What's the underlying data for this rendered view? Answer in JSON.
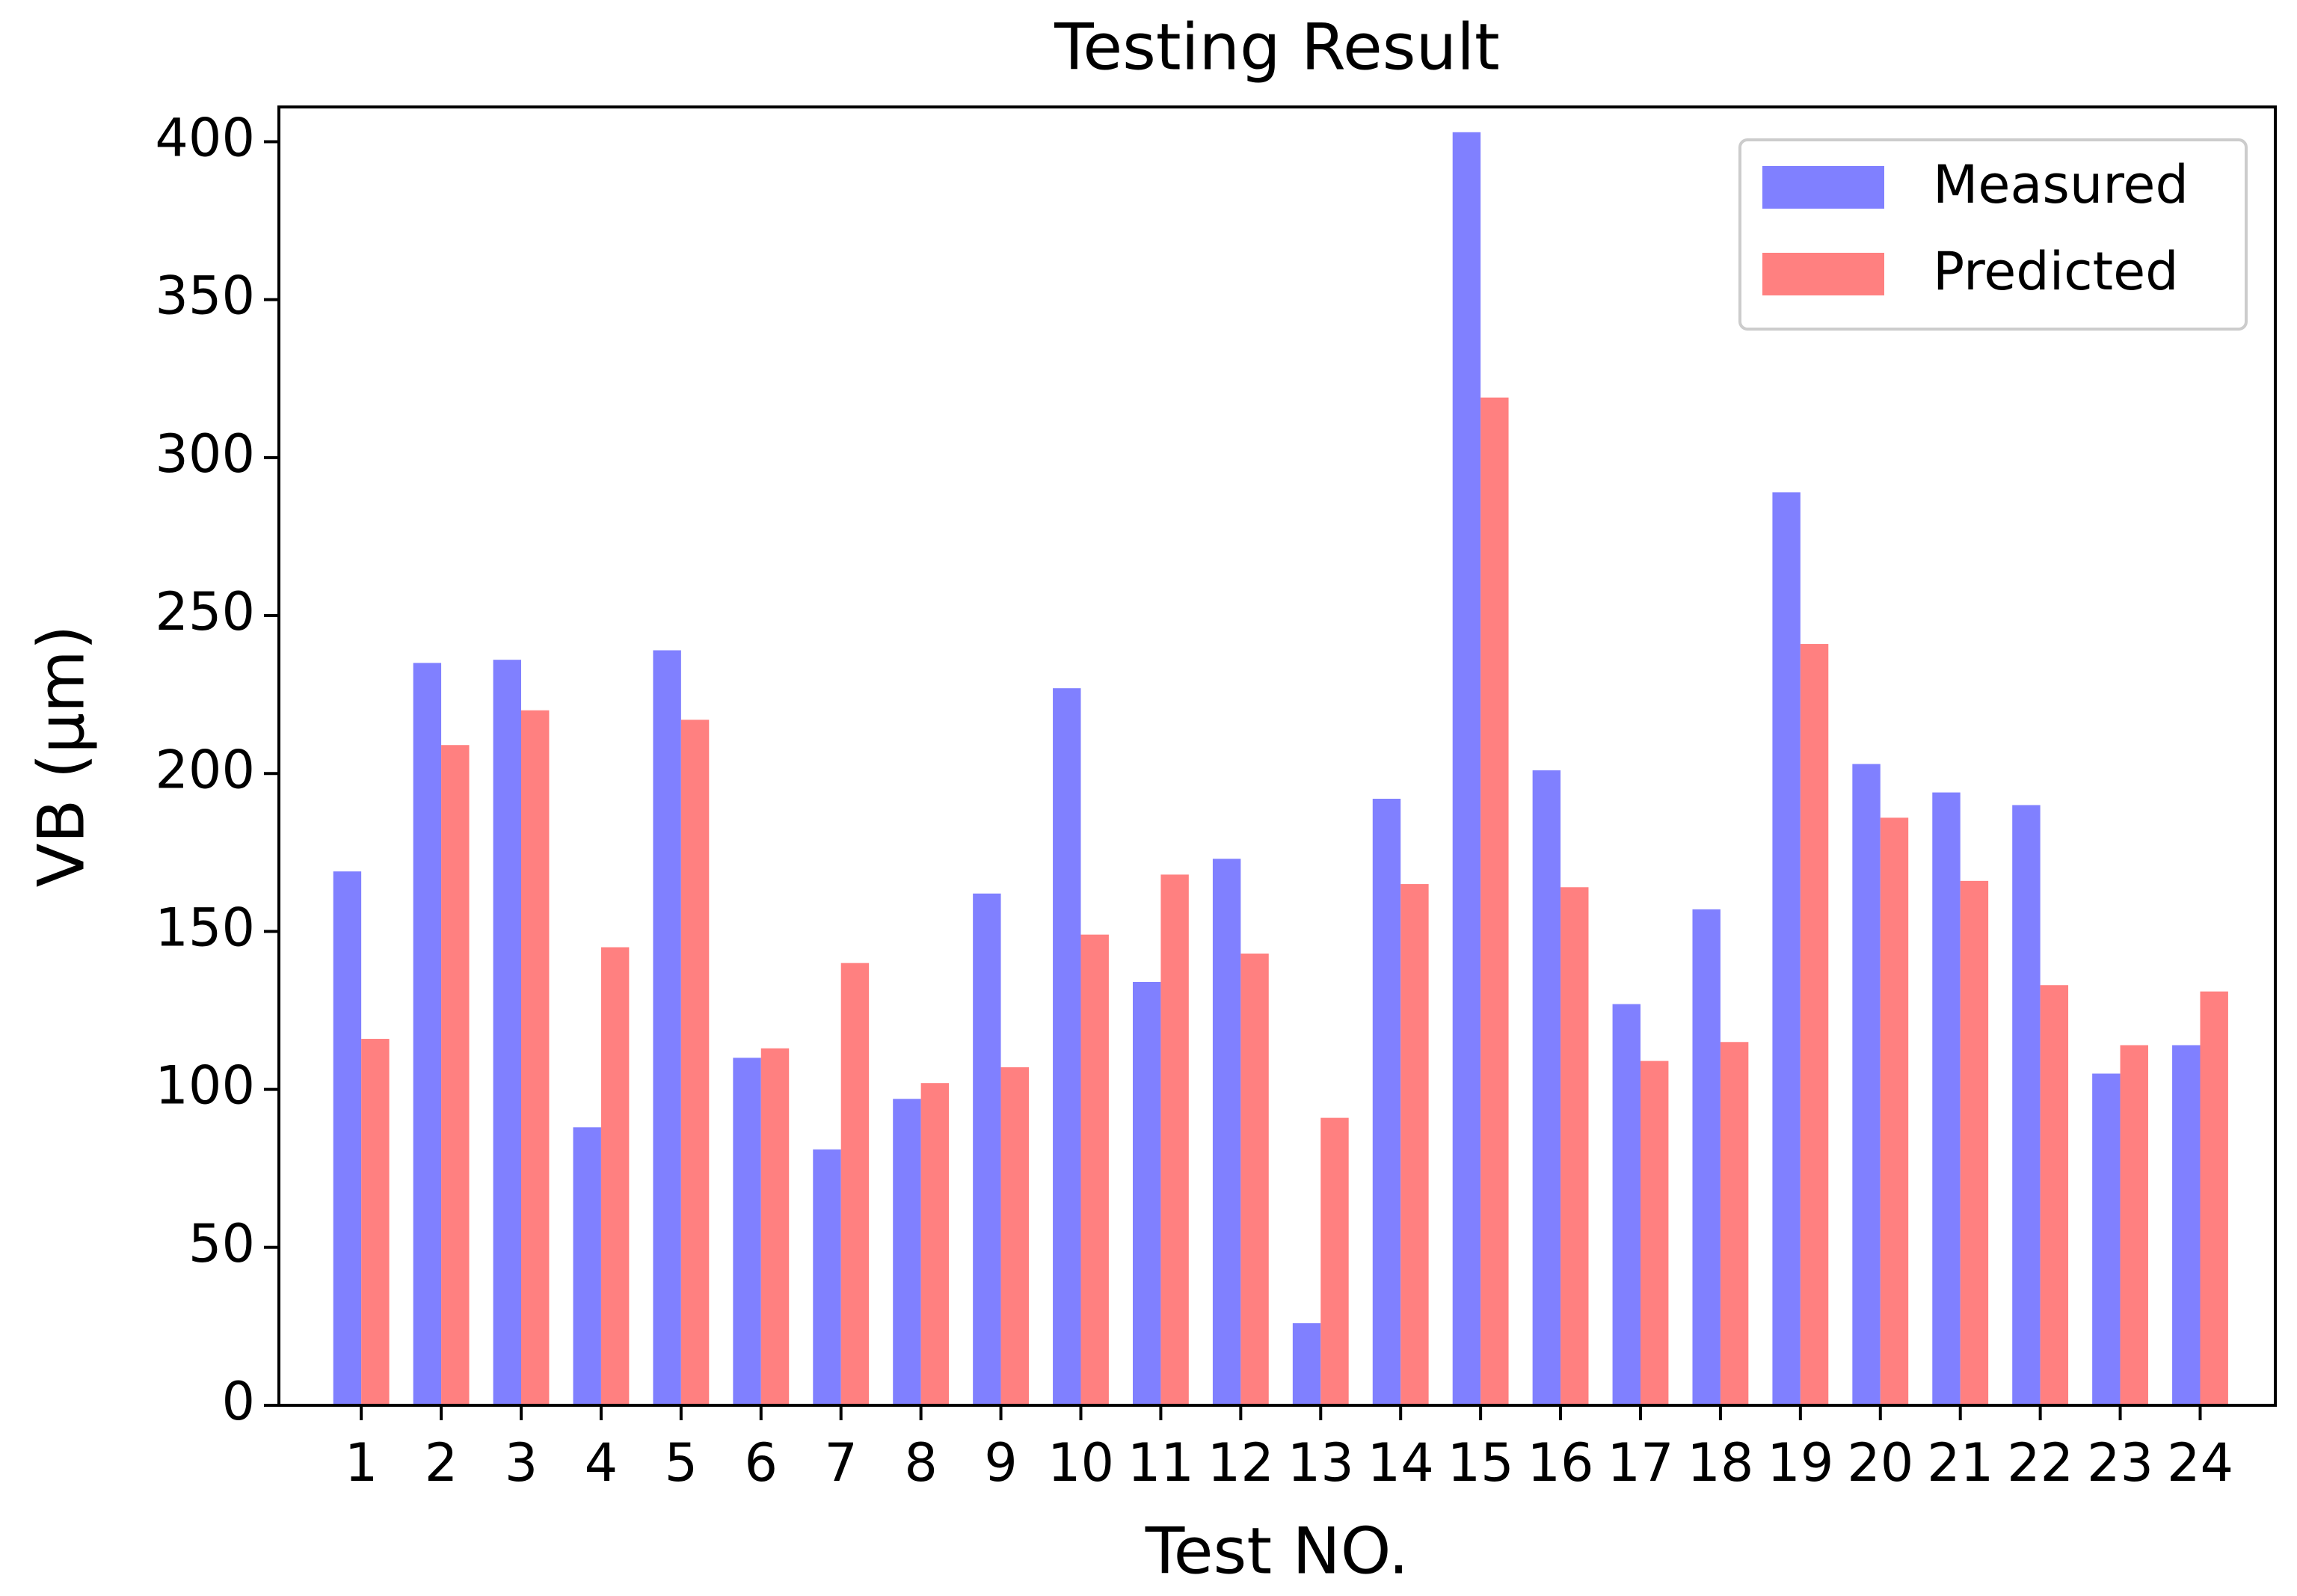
{
  "chart_data": {
    "type": "bar",
    "title": "Testing Result",
    "x_label": "Test NO.",
    "y_label": "VB (μm)",
    "categories": [
      "1",
      "2",
      "3",
      "4",
      "5",
      "6",
      "7",
      "8",
      "9",
      "10",
      "11",
      "12",
      "13",
      "14",
      "15",
      "16",
      "17",
      "18",
      "19",
      "20",
      "21",
      "22",
      "23",
      "24"
    ],
    "series": [
      {
        "name": "Measured",
        "color": "#8080ff",
        "values": [
          169,
          235,
          236,
          88,
          239,
          110,
          81,
          97,
          162,
          227,
          134,
          173,
          26,
          192,
          403,
          201,
          127,
          157,
          289,
          203,
          194,
          190,
          105,
          114
        ]
      },
      {
        "name": "Predicted",
        "color": "#ff8080",
        "values": [
          116,
          209,
          220,
          145,
          217,
          113,
          140,
          102,
          107,
          149,
          168,
          143,
          91,
          165,
          319,
          164,
          109,
          115,
          241,
          186,
          166,
          133,
          114,
          131
        ]
      }
    ],
    "ylim": [
      0,
      411
    ],
    "yticks": [
      0,
      50,
      100,
      150,
      200,
      250,
      300,
      350,
      400
    ],
    "grid": false,
    "legend": "upper right"
  }
}
